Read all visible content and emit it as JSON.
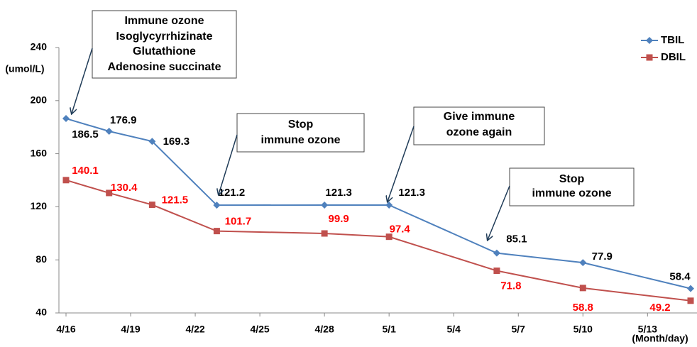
{
  "chart_data": {
    "type": "line",
    "y_label": "(umol/L)",
    "x_label": "(Month/day)",
    "x": [
      "4/16",
      "4/18",
      "4/20",
      "4/23",
      "4/28",
      "5/1",
      "5/6",
      "5/10",
      "5/15"
    ],
    "series": [
      {
        "name": "TBIL",
        "color": "#4f81bd",
        "marker": "diamond",
        "label_color": "#000000",
        "values": [
          186.5,
          176.9,
          169.3,
          121.2,
          121.3,
          121.3,
          85.1,
          77.9,
          58.4
        ]
      },
      {
        "name": "DBIL",
        "color": "#c0504d",
        "marker": "square",
        "label_color": "#ff0000",
        "values": [
          140.1,
          130.4,
          121.5,
          101.7,
          99.9,
          97.4,
          71.8,
          58.8,
          49.2
        ]
      }
    ],
    "xlim": [
      "4/16",
      "5/15"
    ],
    "xticks": [
      "4/16",
      "4/19",
      "4/22",
      "4/25",
      "4/28",
      "5/1",
      "5/4",
      "5/7",
      "5/10",
      "5/13"
    ],
    "ylim": [
      40,
      240
    ],
    "yticks": [
      40,
      80,
      120,
      160,
      200,
      240
    ],
    "legend": "upper right",
    "annotations": [
      {
        "lines": [
          "Immune ozone",
          "Isoglycyrrhizinate",
          "Glutathione",
          "Adenosine succinate"
        ]
      },
      {
        "lines": [
          "Stop",
          "immune ozone"
        ]
      },
      {
        "lines": [
          "Give  immune",
          "ozone again"
        ]
      },
      {
        "lines": [
          "Stop",
          "immune ozone"
        ]
      }
    ]
  }
}
